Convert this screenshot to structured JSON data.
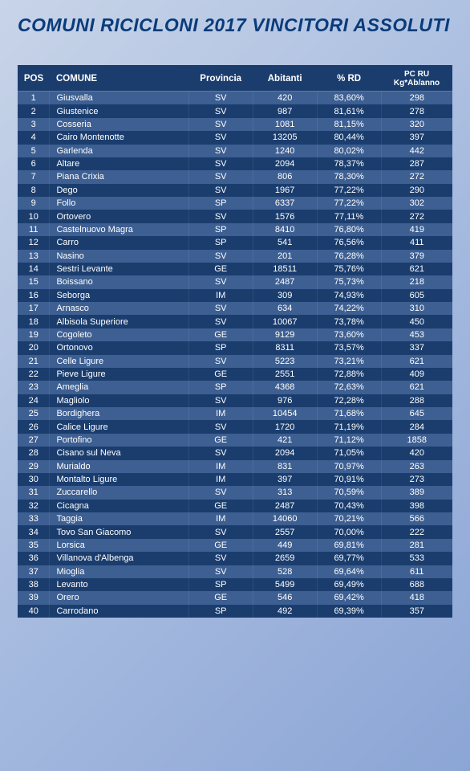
{
  "title": "COMUNI RICICLONI 2017  VINCITORI ASSOLUTI",
  "columns": [
    "POS",
    "COMUNE",
    "Provincia",
    "Abitanti",
    "% RD",
    "PC RU Kg*Ab/anno"
  ],
  "header_bg": "#1a3d6e",
  "row_alt_bg": "#3d5f92",
  "row_reg_bg": "#1a3d6e",
  "text_color": "#ffffff",
  "title_color": "#0a3b7a",
  "rows": [
    [
      "1",
      "Giusvalla",
      "SV",
      "420",
      "83,60%",
      "298"
    ],
    [
      "2",
      "Giustenice",
      "SV",
      "987",
      "81,61%",
      "278"
    ],
    [
      "3",
      "Cosseria",
      "SV",
      "1081",
      "81,15%",
      "320"
    ],
    [
      "4",
      "Cairo Montenotte",
      "SV",
      "13205",
      "80,44%",
      "397"
    ],
    [
      "5",
      "Garlenda",
      "SV",
      "1240",
      "80,02%",
      "442"
    ],
    [
      "6",
      "Altare",
      "SV",
      "2094",
      "78,37%",
      "287"
    ],
    [
      "7",
      "Piana Crixia",
      "SV",
      "806",
      "78,30%",
      "272"
    ],
    [
      "8",
      "Dego",
      "SV",
      "1967",
      "77,22%",
      "290"
    ],
    [
      "9",
      "Follo",
      "SP",
      "6337",
      "77,22%",
      "302"
    ],
    [
      "10",
      "Ortovero",
      "SV",
      "1576",
      "77,11%",
      "272"
    ],
    [
      "11",
      "Castelnuovo Magra",
      "SP",
      "8410",
      "76,80%",
      "419"
    ],
    [
      "12",
      "Carro",
      "SP",
      "541",
      "76,56%",
      "411"
    ],
    [
      "13",
      "Nasino",
      "SV",
      "201",
      "76,28%",
      "379"
    ],
    [
      "14",
      "Sestri Levante",
      "GE",
      "18511",
      "75,76%",
      "621"
    ],
    [
      "15",
      "Boissano",
      "SV",
      "2487",
      "75,73%",
      "218"
    ],
    [
      "16",
      "Seborga",
      "IM",
      "309",
      "74,93%",
      "605"
    ],
    [
      "17",
      "Arnasco",
      "SV",
      "634",
      "74,22%",
      "310"
    ],
    [
      "18",
      "Albisola Superiore",
      "SV",
      "10067",
      "73,78%",
      "450"
    ],
    [
      "19",
      "Cogoleto",
      "GE",
      "9129",
      "73,60%",
      "453"
    ],
    [
      "20",
      "Ortonovo",
      "SP",
      "8311",
      "73,57%",
      "337"
    ],
    [
      "21",
      "Celle Ligure",
      "SV",
      "5223",
      "73,21%",
      "621"
    ],
    [
      "22",
      "Pieve Ligure",
      "GE",
      "2551",
      "72,88%",
      "409"
    ],
    [
      "23",
      "Ameglia",
      "SP",
      "4368",
      "72,63%",
      "621"
    ],
    [
      "24",
      "Magliolo",
      "SV",
      "976",
      "72,28%",
      "288"
    ],
    [
      "25",
      "Bordighera",
      "IM",
      "10454",
      "71,68%",
      "645"
    ],
    [
      "26",
      "Calice Ligure",
      "SV",
      "1720",
      "71,19%",
      "284"
    ],
    [
      "27",
      "Portofino",
      "GE",
      "421",
      "71,12%",
      "1858"
    ],
    [
      "28",
      "Cisano sul Neva",
      "SV",
      "2094",
      "71,05%",
      "420"
    ],
    [
      "29",
      "Murialdo",
      "IM",
      "831",
      "70,97%",
      "263"
    ],
    [
      "30",
      "Montalto Ligure",
      "IM",
      "397",
      "70,91%",
      "273"
    ],
    [
      "31",
      "Zuccarello",
      "SV",
      "313",
      "70,59%",
      "389"
    ],
    [
      "32",
      "Cicagna",
      "GE",
      "2487",
      "70,43%",
      "398"
    ],
    [
      "33",
      "Taggia",
      "IM",
      "14060",
      "70,21%",
      "566"
    ],
    [
      "34",
      "Tovo San Giacomo",
      "SV",
      "2557",
      "70,00%",
      "222"
    ],
    [
      "35",
      "Lorsica",
      "GE",
      "449",
      "69,81%",
      "281"
    ],
    [
      "36",
      "Villanova d'Albenga",
      "SV",
      "2659",
      "69,77%",
      "533"
    ],
    [
      "37",
      "Mioglia",
      "SV",
      "528",
      "69,64%",
      "611"
    ],
    [
      "38",
      "Levanto",
      "SP",
      "5499",
      "69,49%",
      "688"
    ],
    [
      "39",
      "Orero",
      "GE",
      "546",
      "69,42%",
      "418"
    ],
    [
      "40",
      "Carrodano",
      "SP",
      "492",
      "69,39%",
      "357"
    ]
  ]
}
